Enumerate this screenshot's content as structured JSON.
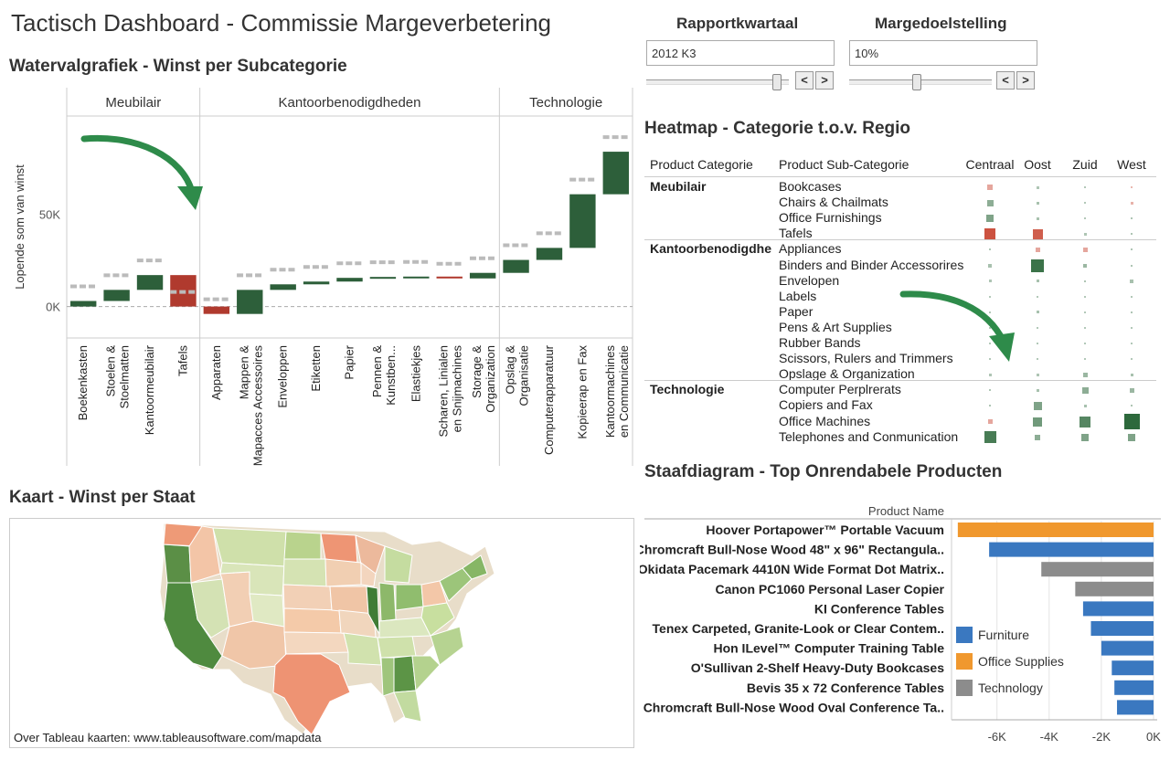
{
  "header": {
    "title": "Tactisch Dashboard - Commissie Margeverbetering"
  },
  "params": [
    {
      "label": "Rapportkwartaal",
      "value": "2012 K3",
      "prev": "<",
      "next": ">"
    },
    {
      "label": "Margedoelstelling",
      "value": "10%",
      "prev": "<",
      "next": ">"
    }
  ],
  "waterfall": {
    "title": "Watervalgrafiek - Winst per Subcategorie",
    "ylabel": "Lopende som van winst",
    "y_ticks": [
      "50K",
      "0K"
    ],
    "groups": [
      "Meubilair",
      "Kantoorbenodigdheden",
      "Technologie"
    ],
    "colors": {
      "positive": "#2d5f3a",
      "negative": "#b03a2e",
      "running": "#bbbbbb"
    },
    "chart_data": {
      "type": "bar",
      "subtype": "waterfall",
      "ylabel": "Lopende som van winst",
      "ylim": [
        -17000,
        103000
      ],
      "categories": [
        "Boekenkasten",
        "Stoelen & Stoelmatten",
        "Kantoormeubilair",
        "Tafels",
        "Apparaten",
        "Mappen & Mapacces Accessoires",
        "Enveloppen",
        "Etiketten",
        "Papier",
        "Pennen & Kunstben...",
        "Elastiekjes",
        "Scharen, Linialen en Snijmachines",
        "Storage & Organization",
        "Opslag & Organisatie",
        "Computerapparatuur",
        "Kopieerap en Fax",
        "Kantoormachines en Communicatie"
      ],
      "category_groups": [
        "Meubilair",
        "Meubilair",
        "Meubilair",
        "Meubilair",
        "Kantoorbenodigdheden",
        "Kantoorbenodigdheden",
        "Kantoorbenodigdheden",
        "Kantoorbenodigdheden",
        "Kantoorbenodigdheden",
        "Kantoorbenodigdheden",
        "Kantoorbenodigdheden",
        "Kantoorbenodigdheden",
        "Kantoorbenodigdheden",
        "Technologie",
        "Technologie",
        "Technologie",
        "Technologie"
      ],
      "values": [
        3000,
        6000,
        8000,
        -17000,
        -4000,
        13000,
        3000,
        1500,
        2000,
        500,
        200,
        -1000,
        3000,
        7000,
        6500,
        29000,
        23000
      ],
      "running_total": [
        3000,
        9000,
        17000,
        0,
        -4000,
        9000,
        12000,
        13500,
        15500,
        16000,
        16200,
        15200,
        18200,
        25200,
        31700,
        60700,
        83700
      ]
    }
  },
  "heatmap": {
    "title": "Heatmap - Categorie t.o.v. Regio",
    "col_category": "Product Categorie",
    "col_subcategory": "Product Sub-Categorie",
    "regions": [
      "Centraal",
      "Oost",
      "Zuid",
      "West"
    ],
    "categories": [
      {
        "name": "Meubilair",
        "rows": [
          {
            "label": "Bookcases",
            "cells": [
              [
                -0.2,
                6
              ],
              [
                0.05,
                3
              ],
              [
                0.02,
                2
              ],
              [
                -0.05,
                2
              ]
            ]
          },
          {
            "label": "Chairs & Chailmats",
            "cells": [
              [
                0.3,
                7
              ],
              [
                0.1,
                3
              ],
              [
                0.02,
                2
              ],
              [
                -0.1,
                3
              ]
            ]
          },
          {
            "label": "Office Furnishings",
            "cells": [
              [
                0.4,
                8
              ],
              [
                0.1,
                3
              ],
              [
                0.02,
                2
              ],
              [
                0.05,
                2
              ]
            ]
          },
          {
            "label": "Tafels",
            "cells": [
              [
                -0.9,
                12
              ],
              [
                -0.8,
                11
              ],
              [
                0.05,
                3
              ],
              [
                0.05,
                2
              ]
            ]
          }
        ]
      },
      {
        "name": "Kantoorbenodigdhe",
        "rows": [
          {
            "label": "Appliances",
            "cells": [
              [
                0.05,
                2
              ],
              [
                -0.2,
                5
              ],
              [
                -0.2,
                5
              ],
              [
                0.05,
                2
              ]
            ]
          },
          {
            "label": "Binders and Binder Accessorires",
            "cells": [
              [
                0.1,
                4
              ],
              [
                0.9,
                14
              ],
              [
                0.2,
                4
              ],
              [
                0.05,
                2
              ]
            ]
          },
          {
            "label": "Envelopen",
            "cells": [
              [
                0.05,
                3
              ],
              [
                0.1,
                3
              ],
              [
                0.05,
                2
              ],
              [
                0.1,
                4
              ]
            ]
          },
          {
            "label": "Labels",
            "cells": [
              [
                0.02,
                2
              ],
              [
                0.02,
                2
              ],
              [
                0.02,
                2
              ],
              [
                0.02,
                2
              ]
            ]
          },
          {
            "label": "Paper",
            "cells": [
              [
                0.02,
                2
              ],
              [
                0.1,
                3
              ],
              [
                0.02,
                2
              ],
              [
                0.05,
                2
              ]
            ]
          },
          {
            "label": "Pens & Art Supplies",
            "cells": [
              [
                0.02,
                2
              ],
              [
                0.02,
                2
              ],
              [
                0.02,
                2
              ],
              [
                0.02,
                2
              ]
            ]
          },
          {
            "label": "Rubber Bands",
            "cells": [
              [
                0.02,
                2
              ],
              [
                0.02,
                2
              ],
              [
                0.02,
                2
              ],
              [
                0.02,
                2
              ]
            ]
          },
          {
            "label": "Scissors, Rulers and Trimmers",
            "cells": [
              [
                0.02,
                2
              ],
              [
                0.02,
                2
              ],
              [
                0.02,
                2
              ],
              [
                0.02,
                2
              ]
            ]
          },
          {
            "label": "Opslage & Organization",
            "cells": [
              [
                0.05,
                3
              ],
              [
                0.05,
                3
              ],
              [
                0.2,
                5
              ],
              [
                0.1,
                3
              ]
            ]
          }
        ]
      },
      {
        "name": "Technologie",
        "rows": [
          {
            "label": "Computer Perplrerats",
            "cells": [
              [
                0.05,
                2
              ],
              [
                0.1,
                3
              ],
              [
                0.3,
                7
              ],
              [
                0.2,
                5
              ]
            ]
          },
          {
            "label": "Copiers and Fax",
            "cells": [
              [
                0.05,
                2
              ],
              [
                0.4,
                9
              ],
              [
                0.1,
                3
              ],
              [
                0.05,
                2
              ]
            ]
          },
          {
            "label": "Office Machines",
            "cells": [
              [
                -0.2,
                5
              ],
              [
                0.5,
                10
              ],
              [
                0.7,
                12
              ],
              [
                1.0,
                17
              ]
            ]
          },
          {
            "label": "Telephones and Conmunication",
            "cells": [
              [
                0.8,
                13
              ],
              [
                0.3,
                6
              ],
              [
                0.4,
                8
              ],
              [
                0.4,
                8
              ]
            ]
          }
        ]
      }
    ]
  },
  "map": {
    "title": "Kaart - Winst per Staat",
    "footer": "Over Tableau kaarten: www.tableausoftware.com/mapdata"
  },
  "bar": {
    "title": "Staafdiagram - Top Onrendabele Producten",
    "header": "Product Name",
    "x_ticks": [
      "-6K",
      "-4K",
      "-2K",
      "0K"
    ],
    "legend": [
      {
        "name": "Furniture",
        "color": "#3a78c0"
      },
      {
        "name": "Office Supplies",
        "color": "#f0982e"
      },
      {
        "name": "Technology",
        "color": "#8c8c8c"
      }
    ],
    "chart_data": {
      "type": "bar",
      "orientation": "horizontal",
      "xlim": [
        -7600,
        0
      ],
      "categories": [
        "Hoover Portapower™ Portable Vacuum",
        "Chromcraft Bull-Nose Wood 48\" x 96\" Rectangula..",
        "Okidata Pacemark 4410N Wide Format Dot Matrix..",
        "Canon PC1060 Personal Laser Copier",
        "KI Conference Tables",
        "Tenex Carpeted, Granite-Look or Clear Contem..",
        "Hon ILevel™ Computer Training Table",
        "O'Sullivan 2-Shelf Heavy-Duty Bookcases",
        "Bevis 35 x 72 Conference Tables",
        "Chromcraft Bull-Nose Wood Oval Conference Ta.."
      ],
      "values": [
        -7500,
        -6300,
        -4300,
        -3000,
        -2700,
        -2400,
        -2000,
        -1600,
        -1500,
        -1400
      ],
      "series_of": [
        "Office Supplies",
        "Furniture",
        "Technology",
        "Technology",
        "Furniture",
        "Furniture",
        "Furniture",
        "Furniture",
        "Furniture",
        "Furniture"
      ]
    }
  }
}
